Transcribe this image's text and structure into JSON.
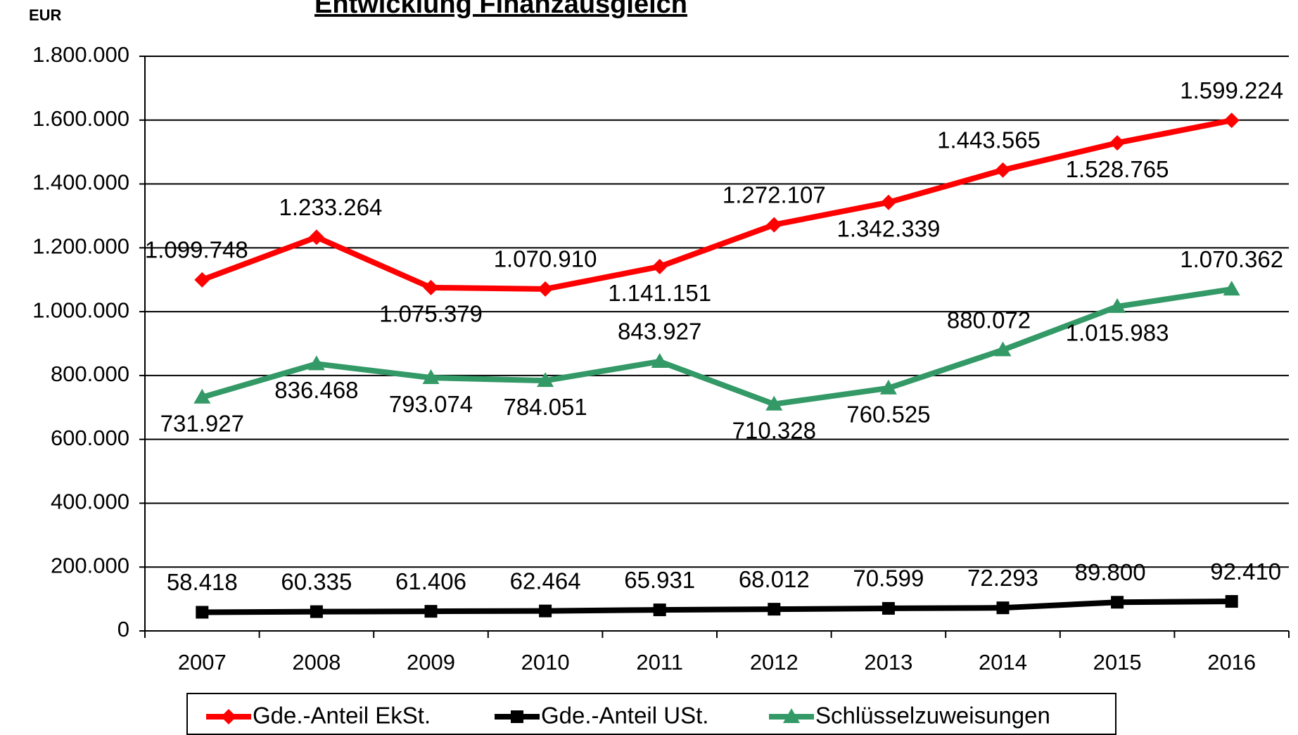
{
  "chart_data": {
    "type": "line",
    "title": "Entwicklung Finanzausgleich",
    "y_label": "EUR",
    "categories": [
      "2007",
      "2008",
      "2009",
      "2010",
      "2011",
      "2012",
      "2013",
      "2014",
      "2015",
      "2016"
    ],
    "series": [
      {
        "name": "Gde.-Anteil EkSt.",
        "color": "#ff0000",
        "marker": "diamond",
        "values": [
          1099748,
          1233264,
          1075379,
          1070910,
          1141151,
          1272107,
          1342339,
          1443565,
          1528765,
          1599224
        ],
        "value_labels": [
          "1.099.748",
          "1.233.264",
          "1.075.379",
          "1.070.910",
          "1.141.151",
          "1.272.107",
          "1.342.339",
          "1.443.565",
          "1.528.765",
          "1.599.224"
        ]
      },
      {
        "name": "Gde.-Anteil USt.",
        "color": "#000000",
        "marker": "square",
        "values": [
          58418,
          60335,
          61406,
          62464,
          65931,
          68012,
          70599,
          72293,
          89800,
          92410
        ],
        "value_labels": [
          "58.418",
          "60.335",
          "61.406",
          "62.464",
          "65.931",
          "68.012",
          "70.599",
          "72.293",
          "89.800",
          "92.410"
        ]
      },
      {
        "name": "Schlüsselzuweisungen",
        "color": "#339966",
        "marker": "triangle",
        "values": [
          731927,
          836468,
          793074,
          784051,
          843927,
          710328,
          760525,
          880072,
          1015983,
          1070362
        ],
        "value_labels": [
          "731.927",
          "836.468",
          "793.074",
          "784.051",
          "843.927",
          "710.328",
          "760.525",
          "880.072",
          "1.015.983",
          "1.070.362"
        ]
      }
    ],
    "ylim": [
      0,
      1800000
    ],
    "yticks": [
      0,
      {
        "value": 200000,
        "label": "200.000"
      },
      {
        "value": 400000,
        "label": "400.000"
      },
      {
        "value": 600000,
        "label": "600.000"
      },
      {
        "value": 800000,
        "label": "800.000"
      },
      {
        "value": 1000000,
        "label": "1.000.000"
      },
      {
        "value": 1200000,
        "label": "1.200.000"
      },
      {
        "value": 1400000,
        "label": "1.400.000"
      },
      {
        "value": 1600000,
        "label": "1.600.000"
      },
      {
        "value": 1800000,
        "label": "1.800.000"
      }
    ],
    "grid": true,
    "legend": "bottom"
  }
}
